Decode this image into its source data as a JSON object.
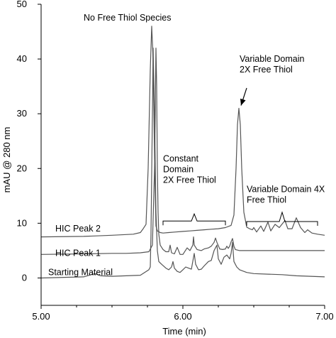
{
  "chart_data": {
    "type": "line",
    "xlabel": "Time (min)",
    "ylabel": "mAU @ 280 nm",
    "xlim": [
      5.0,
      7.0
    ],
    "ylim": [
      -5,
      50
    ],
    "x_ticks": [
      5.0,
      6.0,
      7.0
    ],
    "x_tick_labels": [
      "5.00",
      "6.00",
      "7.00"
    ],
    "y_ticks": [
      0,
      10,
      20,
      30,
      40,
      50
    ],
    "y_tick_labels": [
      "0",
      "10",
      "20",
      "30",
      "40",
      "50"
    ],
    "grid": false,
    "series": [
      {
        "name": "HIC Peak 2",
        "color": "#555555",
        "points": [
          [
            5.0,
            7.5
          ],
          [
            5.3,
            7.6
          ],
          [
            5.5,
            7.8
          ],
          [
            5.65,
            8.0
          ],
          [
            5.7,
            8.3
          ],
          [
            5.72,
            9.0
          ],
          [
            5.74,
            9.8
          ],
          [
            5.755,
            20
          ],
          [
            5.77,
            38
          ],
          [
            5.78,
            46
          ],
          [
            5.79,
            40
          ],
          [
            5.8,
            22
          ],
          [
            5.81,
            9.5
          ],
          [
            5.82,
            8.6
          ],
          [
            5.84,
            8.3
          ],
          [
            5.86,
            8.2
          ],
          [
            5.9,
            8.3
          ],
          [
            5.95,
            8.4
          ],
          [
            6.0,
            8.5
          ],
          [
            6.05,
            8.6
          ],
          [
            6.1,
            8.7
          ],
          [
            6.15,
            8.8
          ],
          [
            6.2,
            8.9
          ],
          [
            6.25,
            9.0
          ],
          [
            6.3,
            9.2
          ],
          [
            6.34,
            9.6
          ],
          [
            6.36,
            11.5
          ],
          [
            6.375,
            20
          ],
          [
            6.385,
            28
          ],
          [
            6.395,
            31
          ],
          [
            6.405,
            28
          ],
          [
            6.415,
            20
          ],
          [
            6.43,
            12
          ],
          [
            6.45,
            9.3
          ],
          [
            6.47,
            9.0
          ],
          [
            6.49,
            8.8
          ],
          [
            6.5,
            9.2
          ],
          [
            6.52,
            8.4
          ],
          [
            6.55,
            9.5
          ],
          [
            6.57,
            8.5
          ],
          [
            6.6,
            10.2
          ],
          [
            6.62,
            8.6
          ],
          [
            6.65,
            9.8
          ],
          [
            6.68,
            9.2
          ],
          [
            6.72,
            10.5
          ],
          [
            6.74,
            9.0
          ],
          [
            6.77,
            9.0
          ],
          [
            6.8,
            11.0
          ],
          [
            6.83,
            9.2
          ],
          [
            6.86,
            8.3
          ],
          [
            6.88,
            8.8
          ],
          [
            6.91,
            8.2
          ],
          [
            6.95,
            8.0
          ],
          [
            7.0,
            7.8
          ]
        ]
      },
      {
        "name": "HIC Peak 1",
        "color": "#555555",
        "points": [
          [
            5.0,
            4.3
          ],
          [
            5.3,
            4.4
          ],
          [
            5.5,
            4.5
          ],
          [
            5.6,
            4.5
          ],
          [
            5.7,
            4.6
          ],
          [
            5.76,
            4.8
          ],
          [
            5.785,
            6
          ],
          [
            5.8,
            20
          ],
          [
            5.805,
            30
          ],
          [
            5.81,
            42
          ],
          [
            5.815,
            35
          ],
          [
            5.82,
            20
          ],
          [
            5.825,
            12
          ],
          [
            5.83,
            8
          ],
          [
            5.84,
            6
          ],
          [
            5.86,
            5.2
          ],
          [
            5.88,
            4.8
          ],
          [
            5.9,
            4.8
          ],
          [
            5.91,
            6.0
          ],
          [
            5.92,
            4.6
          ],
          [
            5.94,
            4.4
          ],
          [
            5.96,
            5.6
          ],
          [
            5.98,
            4.3
          ],
          [
            6.0,
            4.3
          ],
          [
            6.03,
            5.5
          ],
          [
            6.05,
            5.0
          ],
          [
            6.07,
            6.0
          ],
          [
            6.075,
            7.5
          ],
          [
            6.08,
            6.0
          ],
          [
            6.1,
            5.2
          ],
          [
            6.13,
            5.0
          ],
          [
            6.15,
            5.3
          ],
          [
            6.18,
            5.5
          ],
          [
            6.2,
            5.8
          ],
          [
            6.22,
            6.5
          ],
          [
            6.23,
            7.3
          ],
          [
            6.24,
            6.5
          ],
          [
            6.26,
            5.3
          ],
          [
            6.28,
            5.2
          ],
          [
            6.3,
            5.3
          ],
          [
            6.31,
            5.8
          ],
          [
            6.32,
            5.4
          ],
          [
            6.33,
            5.8
          ],
          [
            6.34,
            6.6
          ],
          [
            6.35,
            7.2
          ],
          [
            6.36,
            5.8
          ],
          [
            6.37,
            5.2
          ],
          [
            6.4,
            5.0
          ],
          [
            6.45,
            5.0
          ],
          [
            6.5,
            5.0
          ],
          [
            6.6,
            5.0
          ],
          [
            6.7,
            5.0
          ],
          [
            6.8,
            5.0
          ],
          [
            7.0,
            5.0
          ]
        ]
      },
      {
        "name": "Starting Material",
        "color": "#555555",
        "points": [
          [
            5.0,
            0.0
          ],
          [
            5.3,
            0.2
          ],
          [
            5.38,
            0.8
          ],
          [
            5.42,
            0.4
          ],
          [
            5.5,
            0.3
          ],
          [
            5.6,
            0.4
          ],
          [
            5.7,
            0.5
          ],
          [
            5.76,
            1.5
          ],
          [
            5.77,
            2.0
          ],
          [
            5.775,
            8
          ],
          [
            5.785,
            30
          ],
          [
            5.79,
            42
          ],
          [
            5.8,
            30
          ],
          [
            5.81,
            12
          ],
          [
            5.82,
            5
          ],
          [
            5.83,
            3
          ],
          [
            5.85,
            2.5
          ],
          [
            5.88,
            1.8
          ],
          [
            5.9,
            1.5
          ],
          [
            5.92,
            2.0
          ],
          [
            5.93,
            3.0
          ],
          [
            5.94,
            1.8
          ],
          [
            5.96,
            1.2
          ],
          [
            5.98,
            1.0
          ],
          [
            6.0,
            1.5
          ],
          [
            6.02,
            2.0
          ],
          [
            6.04,
            1.8
          ],
          [
            6.06,
            1.6
          ],
          [
            6.08,
            4.5
          ],
          [
            6.09,
            2.5
          ],
          [
            6.11,
            1.5
          ],
          [
            6.13,
            1.6
          ],
          [
            6.15,
            2.2
          ],
          [
            6.18,
            3.0
          ],
          [
            6.2,
            3.2
          ],
          [
            6.22,
            5.0
          ],
          [
            6.24,
            6.0
          ],
          [
            6.25,
            3.5
          ],
          [
            6.27,
            2.5
          ],
          [
            6.29,
            3.8
          ],
          [
            6.31,
            4.2
          ],
          [
            6.33,
            3.5
          ],
          [
            6.34,
            4.5
          ],
          [
            6.35,
            6.5
          ],
          [
            6.36,
            3.0
          ],
          [
            6.38,
            2.0
          ],
          [
            6.4,
            1.5
          ],
          [
            6.45,
            1.0
          ],
          [
            6.5,
            0.8
          ],
          [
            6.6,
            0.7
          ],
          [
            6.7,
            0.6
          ],
          [
            6.8,
            0.4
          ],
          [
            6.9,
            0.3
          ],
          [
            7.0,
            0.2
          ]
        ]
      }
    ],
    "trace_labels": [
      {
        "text": "HIC Peak 2",
        "x": 5.1,
        "y": 8.5
      },
      {
        "text": "HIC Peak 1",
        "x": 5.1,
        "y": 4.0
      },
      {
        "text": "Starting Material",
        "x": 5.05,
        "y": 0.5
      }
    ],
    "annotations": [
      {
        "lines": [
          "No Free Thiol Species"
        ],
        "x": 5.3,
        "y": 47.0
      },
      {
        "lines": [
          "Variable Domain",
          "2X Free Thiol"
        ],
        "x": 6.4,
        "y": 39.5
      },
      {
        "lines": [
          "Constant",
          "Domain",
          "2X Free Thiol"
        ],
        "x": 5.86,
        "y": 21.3
      },
      {
        "lines": [
          "Variable Domain 4X",
          "Free Thiol"
        ],
        "x": 6.45,
        "y": 15.7
      }
    ],
    "arrows": [
      {
        "from": [
          6.45,
          34.7
        ],
        "to": [
          6.41,
          31.5
        ]
      }
    ],
    "brackets": [
      {
        "x0": 5.86,
        "x1": 6.3,
        "y": 10.4,
        "tip": 11.7
      },
      {
        "x0": 6.45,
        "x1": 6.95,
        "y": 10.3,
        "tip": 12.0
      }
    ]
  }
}
